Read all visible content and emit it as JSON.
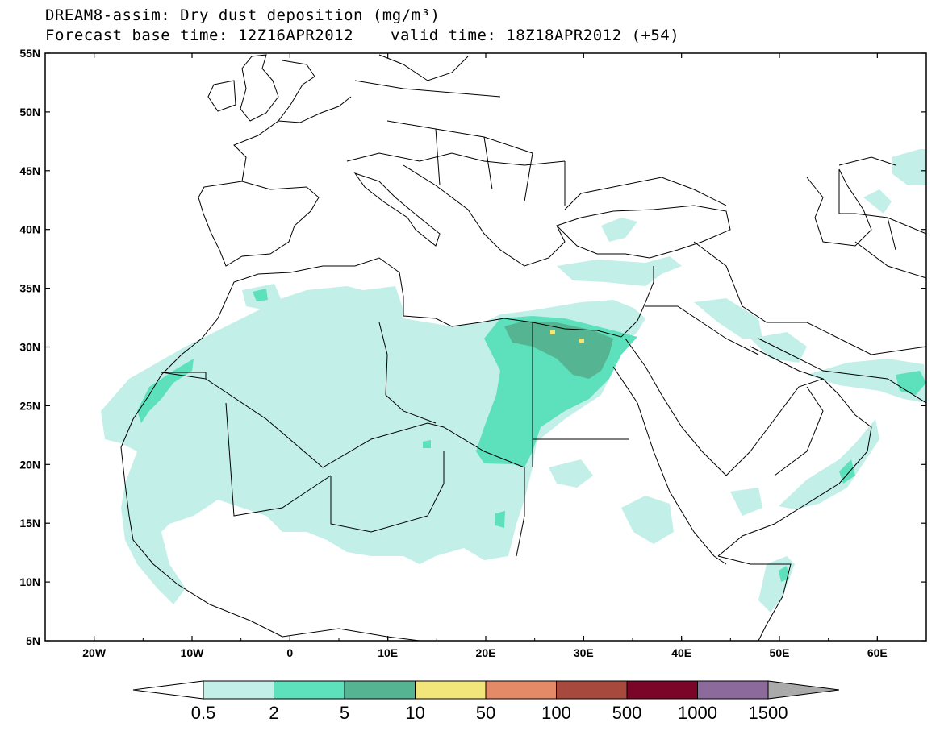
{
  "title": {
    "line1": "DREAM8-assim: Dry dust deposition (mg/m³)",
    "forecast_base": "Forecast base time: 12Z16APR2012",
    "valid": "valid time: 18Z18APR2012 (+54)"
  },
  "map": {
    "lon_range": [
      -25,
      65
    ],
    "lat_range": [
      5,
      55
    ],
    "x_ticks": [
      "20W",
      "10W",
      "0",
      "10E",
      "20E",
      "30E",
      "40E",
      "50E",
      "60E"
    ],
    "y_ticks": [
      "55N",
      "50N",
      "45N",
      "40N",
      "35N",
      "30N",
      "25N",
      "20N",
      "15N",
      "10N",
      "5N"
    ],
    "colorbar": {
      "labels": [
        "0.5",
        "2",
        "5",
        "10",
        "50",
        "100",
        "500",
        "1000",
        "1500"
      ],
      "colors": [
        "#c2efe8",
        "#5ce1bc",
        "#55b592",
        "#f2e57a",
        "#e58a67",
        "#a8493e",
        "#7b0528",
        "#8d6a9c"
      ],
      "over_color": "#aaaaaa",
      "under_color": "#ffffff"
    }
  }
}
